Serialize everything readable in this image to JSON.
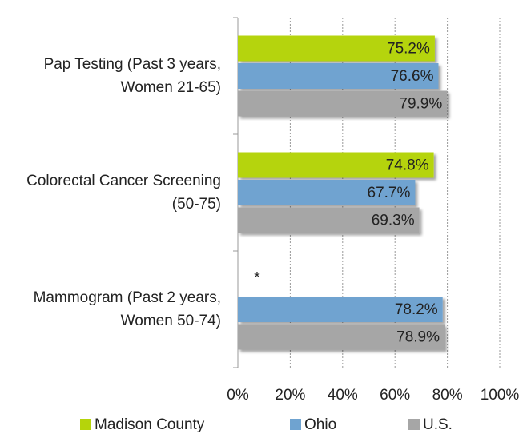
{
  "chart_data": {
    "type": "hbar",
    "categories": [
      "Pap Testing (Past 3 years, Women 21-65)",
      "Colorectal Cancer Screening (50-75)",
      "Mammogram (Past 2 years, Women 50-74)"
    ],
    "series": [
      {
        "name": "Madison County",
        "color": "#b5d40b",
        "values": [
          75.2,
          74.8,
          null
        ],
        "value_labels": [
          "75.2%",
          "74.8%",
          null
        ]
      },
      {
        "name": "Ohio",
        "color": "#6fa3d0",
        "values": [
          76.6,
          67.7,
          78.2
        ],
        "value_labels": [
          "76.6%",
          "67.7%",
          "78.2%"
        ]
      },
      {
        "name": "U.S.",
        "color": "#a6a6a6",
        "values": [
          79.9,
          69.3,
          78.9
        ],
        "value_labels": [
          "79.9%",
          "69.3%",
          "78.9%"
        ]
      }
    ],
    "annotation": "*",
    "xlim": [
      0,
      100
    ],
    "xticks": [
      {
        "value": 0,
        "label": "0%"
      },
      {
        "value": 20,
        "label": "20%"
      },
      {
        "value": 40,
        "label": "40%"
      },
      {
        "value": 60,
        "label": "60%"
      },
      {
        "value": 80,
        "label": "80%"
      },
      {
        "value": 100,
        "label": "100%"
      }
    ],
    "grid": true,
    "legend": "bottom"
  }
}
